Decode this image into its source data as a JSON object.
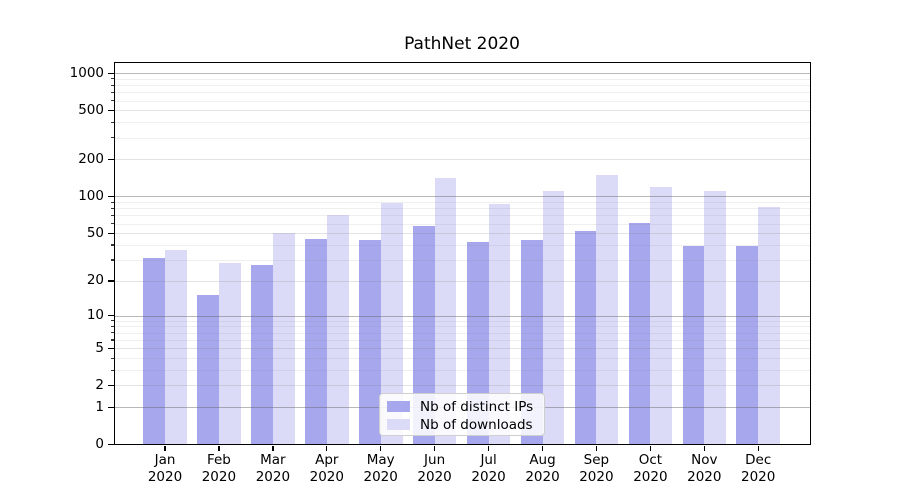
{
  "chart_data": {
    "type": "bar",
    "title": "PathNet 2020",
    "categories": [
      "Jan",
      "Feb",
      "Mar",
      "Apr",
      "May",
      "Jun",
      "Jul",
      "Aug",
      "Sep",
      "Oct",
      "Nov",
      "Dec"
    ],
    "category_year_label": "2020",
    "series": [
      {
        "name": "Nb of distinct IPs",
        "color": "#a7a7ee",
        "values": [
          31,
          15,
          27,
          45,
          44,
          57,
          42,
          44,
          52,
          60,
          39,
          39
        ]
      },
      {
        "name": "Nb of downloads",
        "color": "#dbdbf8",
        "values": [
          36,
          28,
          50,
          70,
          88,
          140,
          87,
          110,
          150,
          120,
          110,
          82
        ]
      }
    ],
    "y_axis": {
      "scale": "log10(value+1)",
      "tick_values": [
        0,
        1,
        2,
        5,
        10,
        20,
        50,
        100,
        200,
        500,
        1000
      ],
      "tick_labels": [
        "0",
        "1",
        "2",
        "5",
        "10",
        "20",
        "50",
        "100",
        "200",
        "500",
        "1000"
      ],
      "decade_values": [
        1,
        10,
        100,
        1000
      ],
      "mid_values": [
        2,
        5,
        20,
        50,
        200,
        500
      ],
      "minor_tick_values": [
        3,
        4,
        6,
        7,
        8,
        9,
        30,
        40,
        60,
        70,
        80,
        90,
        300,
        400,
        600,
        700,
        800,
        900
      ],
      "range_top": 1210
    },
    "x_axis": {
      "tick_count": 12
    },
    "grid": "horizontal",
    "legend": {
      "location": "lower center"
    }
  },
  "colors": {
    "background": "#ffffff",
    "bar_distinct_ips": "#a7a7ee",
    "bar_downloads": "#dbdbf8",
    "grid_decade": "#bdbdbd",
    "grid_minor": "#e7e7e7",
    "axis": "#000000",
    "legend_border": "#cfcfcf"
  }
}
